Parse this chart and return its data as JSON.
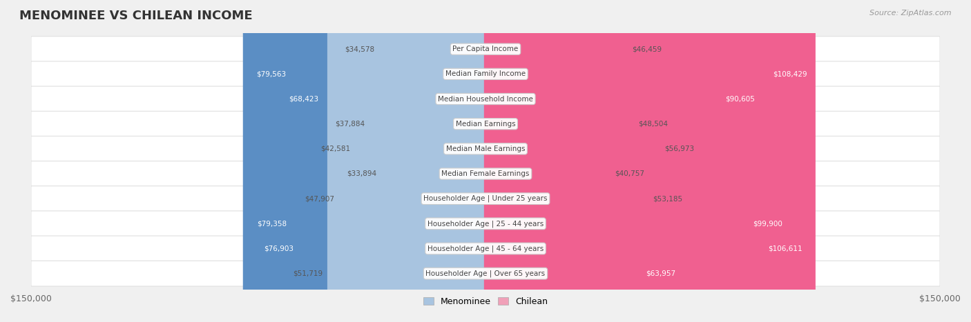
{
  "title": "MENOMINEE VS CHILEAN INCOME",
  "source": "Source: ZipAtlas.com",
  "categories": [
    "Per Capita Income",
    "Median Family Income",
    "Median Household Income",
    "Median Earnings",
    "Median Male Earnings",
    "Median Female Earnings",
    "Householder Age | Under 25 years",
    "Householder Age | 25 - 44 years",
    "Householder Age | 45 - 64 years",
    "Householder Age | Over 65 years"
  ],
  "menominee_values": [
    34578,
    79563,
    68423,
    37884,
    42581,
    33894,
    47907,
    79358,
    76903,
    51719
  ],
  "chilean_values": [
    46459,
    108429,
    90605,
    48504,
    56973,
    40757,
    53185,
    99900,
    106611,
    63957
  ],
  "menominee_labels": [
    "$34,578",
    "$79,563",
    "$68,423",
    "$37,884",
    "$42,581",
    "$33,894",
    "$47,907",
    "$79,358",
    "$76,903",
    "$51,719"
  ],
  "chilean_labels": [
    "$46,459",
    "$108,429",
    "$90,605",
    "$48,504",
    "$56,973",
    "$40,757",
    "$53,185",
    "$99,900",
    "$106,611",
    "$63,957"
  ],
  "max_val": 150000,
  "menominee_color_light": "#a8c4e0",
  "menominee_color_dark": "#5b8ec4",
  "chilean_color_light": "#f0a0b8",
  "chilean_color_dark": "#f06090",
  "bg_color": "#f0f0f0",
  "row_bg": "#f8f8f8",
  "row_border": "#e0e0e0",
  "title_color": "#333333",
  "source_color": "#999999",
  "label_dark_threshold": 60000,
  "bar_height": 0.55,
  "legend_menominee": "Menominee",
  "legend_chilean": "Chilean"
}
